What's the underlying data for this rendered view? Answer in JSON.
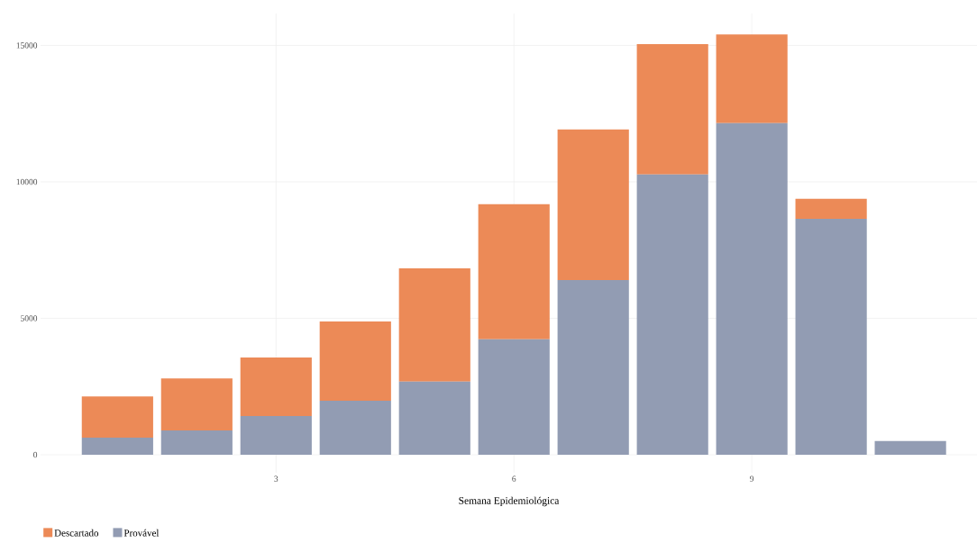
{
  "chart_data": {
    "type": "bar",
    "stacked": true,
    "xlabel": "Semana Epidemiológica",
    "x": [
      1,
      2,
      3,
      4,
      5,
      6,
      7,
      8,
      9,
      10,
      11
    ],
    "series": [
      {
        "name": "Provável",
        "color": "#929cb3",
        "values": [
          630,
          890,
          1420,
          1980,
          2680,
          4230,
          6400,
          10270,
          12150,
          8650,
          500
        ]
      },
      {
        "name": "Descartado",
        "color": "#ec8a57",
        "values": [
          1510,
          1910,
          2140,
          2900,
          4150,
          4950,
          5520,
          4780,
          3250,
          730,
          0
        ]
      }
    ],
    "xlim": [
      0.03,
      11.84
    ],
    "ylim": [
      -660,
      16170
    ],
    "xticks": [
      3,
      6,
      9
    ],
    "yticks": [
      0,
      5000,
      10000,
      15000
    ],
    "grid": true,
    "legend": "bottom left"
  }
}
